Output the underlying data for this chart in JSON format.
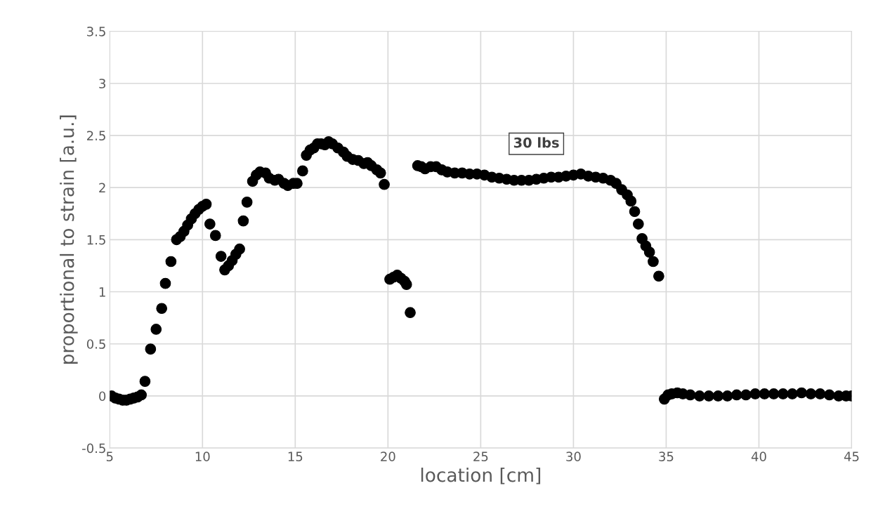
{
  "chart_data": {
    "type": "scatter",
    "xlabel": "location [cm]",
    "ylabel": "proportional to strain [a.u.]",
    "annotations": [
      "30 lbs"
    ],
    "xlim": [
      5,
      45
    ],
    "xticks": [
      5,
      10,
      15,
      20,
      25,
      30,
      35,
      40,
      45
    ],
    "ylim": [
      -0.5,
      3.5
    ],
    "yticks": [
      -0.5,
      0,
      0.5,
      1,
      1.5,
      2,
      2.5,
      3,
      3.5
    ],
    "grid": true,
    "marker": "circle",
    "legend": false,
    "series": [
      {
        "color": "#000000",
        "x": [
          5.1,
          5.3,
          5.5,
          5.7,
          5.9,
          6.1,
          6.3,
          6.5,
          6.7,
          6.9,
          7.2,
          7.5,
          7.8,
          8.0,
          8.3,
          8.6,
          8.8,
          9.0,
          9.2,
          9.4,
          9.6,
          9.8,
          10.0,
          10.2,
          10.4,
          10.7,
          11.0,
          11.2,
          11.4,
          11.6,
          11.8,
          12.0,
          12.2,
          12.4,
          12.7,
          12.9,
          13.1,
          13.4,
          13.6,
          13.9,
          14.1,
          14.4,
          14.6,
          14.9,
          15.1,
          15.4,
          15.6,
          15.8,
          16.0,
          16.2,
          16.4,
          16.6,
          16.8,
          17.0,
          17.3,
          17.6,
          17.8,
          18.1,
          18.4,
          18.7,
          18.9,
          19.1,
          19.4,
          19.6,
          19.8,
          20.1,
          20.3,
          20.5,
          20.7,
          20.9,
          21.0,
          21.2,
          21.6,
          21.8,
          22.0,
          22.3,
          22.6,
          22.9,
          23.2,
          23.6,
          24.0,
          24.4,
          24.8,
          25.2,
          25.6,
          26.0,
          26.4,
          26.8,
          27.2,
          27.6,
          28.0,
          28.4,
          28.8,
          29.2,
          29.6,
          30.0,
          30.4,
          30.8,
          31.2,
          31.6,
          32.0,
          32.3,
          32.6,
          32.9,
          33.1,
          33.3,
          33.5,
          33.7,
          33.9,
          34.1,
          34.3,
          34.6,
          34.9,
          35.1,
          35.3,
          35.6,
          35.9,
          36.3,
          36.8,
          37.3,
          37.8,
          38.3,
          38.8,
          39.3,
          39.8,
          40.3,
          40.8,
          41.3,
          41.8,
          42.3,
          42.8,
          43.3,
          43.8,
          44.3,
          44.7,
          45.0
        ],
        "values": [
          0.0,
          -0.02,
          -0.03,
          -0.04,
          -0.04,
          -0.03,
          -0.02,
          -0.01,
          0.01,
          0.14,
          0.45,
          0.64,
          0.84,
          1.08,
          1.29,
          1.5,
          1.53,
          1.58,
          1.64,
          1.7,
          1.75,
          1.79,
          1.82,
          1.84,
          1.65,
          1.54,
          1.34,
          1.21,
          1.25,
          1.3,
          1.36,
          1.41,
          1.68,
          1.86,
          2.06,
          2.12,
          2.15,
          2.14,
          2.09,
          2.07,
          2.08,
          2.04,
          2.02,
          2.04,
          2.04,
          2.16,
          2.31,
          2.36,
          2.38,
          2.42,
          2.42,
          2.41,
          2.44,
          2.42,
          2.38,
          2.34,
          2.3,
          2.27,
          2.26,
          2.23,
          2.24,
          2.21,
          2.17,
          2.14,
          2.03,
          1.12,
          1.14,
          1.16,
          1.13,
          1.1,
          1.07,
          0.8,
          2.21,
          2.2,
          2.18,
          2.2,
          2.2,
          2.17,
          2.15,
          2.14,
          2.14,
          2.13,
          2.13,
          2.12,
          2.1,
          2.09,
          2.08,
          2.07,
          2.07,
          2.07,
          2.08,
          2.09,
          2.1,
          2.1,
          2.11,
          2.12,
          2.13,
          2.11,
          2.1,
          2.09,
          2.07,
          2.04,
          1.98,
          1.93,
          1.87,
          1.77,
          1.65,
          1.51,
          1.44,
          1.38,
          1.29,
          1.15,
          -0.03,
          0.01,
          0.02,
          0.03,
          0.02,
          0.01,
          0.0,
          0.0,
          0.0,
          0.0,
          0.01,
          0.01,
          0.02,
          0.02,
          0.02,
          0.02,
          0.02,
          0.03,
          0.02,
          0.02,
          0.01,
          0.0,
          0.0,
          0.0
        ]
      }
    ]
  }
}
